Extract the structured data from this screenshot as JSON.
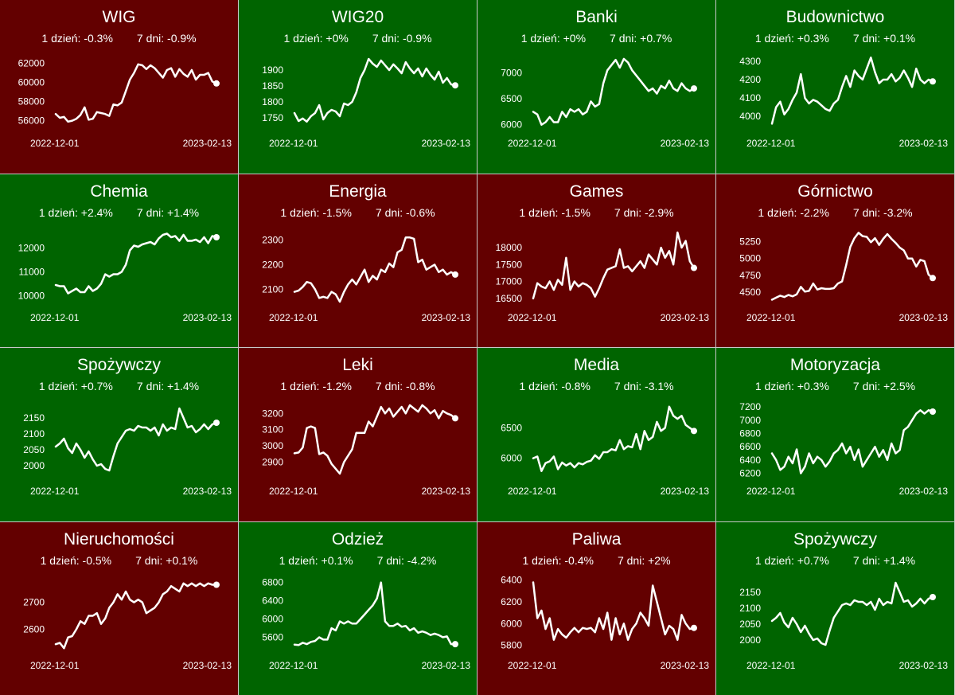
{
  "chart_data": [
    {
      "type": "line",
      "title": "WIG",
      "trend": "down",
      "stats": {
        "day": "1 dzień: -0.3%",
        "week": "7 dni: -0.9%"
      },
      "x_labels": [
        "2022-12-01",
        "2023-02-13"
      ],
      "yticks": [
        56000,
        58000,
        60000,
        62000
      ],
      "ylim": [
        55300,
        62800
      ],
      "values": [
        56700,
        56300,
        56400,
        55900,
        56000,
        56200,
        56600,
        57400,
        56100,
        56200,
        56900,
        56800,
        56700,
        56500,
        57700,
        57600,
        57900,
        59100,
        60300,
        61000,
        61900,
        61800,
        61400,
        61800,
        61500,
        61000,
        60500,
        61300,
        61500,
        60600,
        61400,
        60900,
        60600,
        61300,
        60300,
        60800,
        60800,
        61000,
        60100,
        59900
      ]
    },
    {
      "type": "line",
      "title": "WIG20",
      "trend": "up",
      "stats": {
        "day": "1 dzień: +0%",
        "week": "7 dni: -0.9%"
      },
      "x_labels": [
        "2022-12-01",
        "2023-02-13"
      ],
      "yticks": [
        1750,
        1800,
        1850,
        1900
      ],
      "ylim": [
        1720,
        1945
      ],
      "values": [
        1765,
        1740,
        1748,
        1738,
        1755,
        1765,
        1790,
        1745,
        1765,
        1775,
        1770,
        1755,
        1795,
        1790,
        1800,
        1830,
        1875,
        1900,
        1935,
        1920,
        1910,
        1930,
        1915,
        1900,
        1918,
        1905,
        1890,
        1925,
        1905,
        1890,
        1905,
        1880,
        1905,
        1885,
        1870,
        1895,
        1860,
        1875,
        1855,
        1852
      ]
    },
    {
      "type": "line",
      "title": "Banki",
      "trend": "up",
      "stats": {
        "day": "1 dzień: +0%",
        "week": "7 dni: +0.7%"
      },
      "x_labels": [
        "2022-12-01",
        "2023-02-13"
      ],
      "yticks": [
        6000,
        6500,
        7000
      ],
      "ylim": [
        5950,
        7330
      ],
      "values": [
        6250,
        6200,
        6000,
        6050,
        6150,
        6050,
        6050,
        6250,
        6150,
        6300,
        6250,
        6300,
        6200,
        6250,
        6450,
        6350,
        6400,
        6800,
        7050,
        7150,
        7250,
        7100,
        7270,
        7200,
        7050,
        6950,
        6850,
        6750,
        6650,
        6700,
        6600,
        6750,
        6700,
        6850,
        6700,
        6650,
        6800,
        6700,
        6650,
        6700
      ]
    },
    {
      "type": "line",
      "title": "Budownictwo",
      "trend": "up",
      "stats": {
        "day": "1 dzień: +0.3%",
        "week": "7 dni: +0.1%"
      },
      "x_labels": [
        "2022-12-01",
        "2023-02-13"
      ],
      "yticks": [
        4000,
        4100,
        4200,
        4300
      ],
      "ylim": [
        3940,
        4330
      ],
      "values": [
        3960,
        4050,
        4080,
        4010,
        4040,
        4090,
        4130,
        4230,
        4100,
        4070,
        4090,
        4080,
        4060,
        4040,
        4030,
        4070,
        4090,
        4160,
        4220,
        4160,
        4250,
        4220,
        4200,
        4260,
        4320,
        4240,
        4180,
        4200,
        4200,
        4230,
        4190,
        4210,
        4250,
        4210,
        4160,
        4260,
        4200,
        4180,
        4200,
        4190
      ]
    },
    {
      "type": "line",
      "title": "Chemia",
      "trend": "up",
      "stats": {
        "day": "1 dzień: +2.4%",
        "week": "7 dni: +1.4%"
      },
      "x_labels": [
        "2022-12-01",
        "2023-02-13"
      ],
      "yticks": [
        10000,
        11000,
        12000
      ],
      "ylim": [
        9750,
        12750
      ],
      "values": [
        10450,
        10400,
        10400,
        10100,
        10200,
        10300,
        10150,
        10150,
        10400,
        10200,
        10300,
        10500,
        10900,
        10800,
        10900,
        10900,
        11000,
        11300,
        11900,
        12100,
        12050,
        12150,
        12200,
        12250,
        12150,
        12400,
        12550,
        12600,
        12450,
        12500,
        12300,
        12550,
        12300,
        12300,
        12350,
        12250,
        12450,
        12200,
        12500,
        12450
      ]
    },
    {
      "type": "line",
      "title": "Energia",
      "trend": "down",
      "stats": {
        "day": "1 dzień: -1.5%",
        "week": "7 dni: -0.6%"
      },
      "x_labels": [
        "2022-12-01",
        "2023-02-13"
      ],
      "yticks": [
        2100,
        2200,
        2300
      ],
      "ylim": [
        2050,
        2340
      ],
      "values": [
        2090,
        2095,
        2110,
        2130,
        2125,
        2100,
        2065,
        2070,
        2065,
        2090,
        2080,
        2050,
        2090,
        2120,
        2140,
        2120,
        2150,
        2180,
        2130,
        2155,
        2140,
        2180,
        2170,
        2205,
        2190,
        2250,
        2260,
        2310,
        2310,
        2305,
        2210,
        2220,
        2180,
        2190,
        2200,
        2170,
        2180,
        2160,
        2170,
        2160
      ]
    },
    {
      "type": "line",
      "title": "Games",
      "trend": "down",
      "stats": {
        "day": "1 dzień: -1.5%",
        "week": "7 dni: -2.9%"
      },
      "x_labels": [
        "2022-12-01",
        "2023-02-13"
      ],
      "yticks": [
        16500,
        17000,
        17500,
        18000
      ],
      "ylim": [
        16400,
        18520
      ],
      "values": [
        16500,
        16950,
        16850,
        16800,
        17000,
        16750,
        17050,
        16900,
        17700,
        16750,
        17000,
        16850,
        16950,
        16900,
        16800,
        16550,
        16800,
        17100,
        17350,
        17400,
        17450,
        17950,
        17400,
        17450,
        17300,
        17450,
        17600,
        17400,
        17800,
        17650,
        17500,
        18000,
        17700,
        17900,
        17500,
        18450,
        18000,
        18200,
        17600,
        17400
      ]
    },
    {
      "type": "line",
      "title": "Górnictwo",
      "trend": "down",
      "stats": {
        "day": "1 dzień: -2.2%",
        "week": "7 dni: -3.2%"
      },
      "x_labels": [
        "2022-12-01",
        "2023-02-13"
      ],
      "yticks": [
        4500,
        4750,
        5000,
        5250
      ],
      "ylim": [
        4360,
        5420
      ],
      "values": [
        4390,
        4420,
        4450,
        4430,
        4460,
        4440,
        4470,
        4580,
        4510,
        4520,
        4630,
        4540,
        4560,
        4550,
        4550,
        4560,
        4630,
        4660,
        4900,
        5170,
        5300,
        5380,
        5330,
        5320,
        5240,
        5300,
        5200,
        5290,
        5360,
        5290,
        5230,
        5160,
        5120,
        5000,
        5000,
        4880,
        4980,
        4960,
        4760,
        4710
      ]
    },
    {
      "type": "line",
      "title": "Spożywczy",
      "trend": "up",
      "stats": {
        "day": "1 dzień: +0.7%",
        "week": "7 dni: +1.4%"
      },
      "x_labels": [
        "2022-12-01",
        "2023-02-13"
      ],
      "yticks": [
        2000,
        2050,
        2100,
        2150
      ],
      "ylim": [
        1970,
        2195
      ],
      "values": [
        2060,
        2070,
        2085,
        2055,
        2040,
        2070,
        2050,
        2025,
        2045,
        2020,
        2000,
        2005,
        1990,
        1985,
        2030,
        2070,
        2090,
        2110,
        2115,
        2110,
        2125,
        2120,
        2120,
        2110,
        2120,
        2095,
        2130,
        2110,
        2120,
        2115,
        2180,
        2150,
        2120,
        2125,
        2105,
        2115,
        2130,
        2115,
        2130,
        2135
      ]
    },
    {
      "type": "line",
      "title": "Leki",
      "trend": "down",
      "stats": {
        "day": "1 dzień: -1.2%",
        "week": "7 dni: -0.8%"
      },
      "x_labels": [
        "2022-12-01",
        "2023-02-13"
      ],
      "yticks": [
        2900,
        3000,
        3100,
        3200
      ],
      "ylim": [
        2820,
        3260
      ],
      "values": [
        2955,
        2960,
        2990,
        3110,
        3120,
        3110,
        2950,
        2960,
        2940,
        2890,
        2860,
        2830,
        2900,
        2940,
        2980,
        3080,
        3080,
        3080,
        3150,
        3120,
        3180,
        3240,
        3200,
        3230,
        3180,
        3210,
        3240,
        3200,
        3250,
        3230,
        3210,
        3250,
        3230,
        3200,
        3220,
        3170,
        3215,
        3200,
        3190,
        3170
      ]
    },
    {
      "type": "line",
      "title": "Media",
      "trend": "up",
      "stats": {
        "day": "1 dzień: -0.8%",
        "week": "7 dni: -3.1%"
      },
      "x_labels": [
        "2022-12-01",
        "2023-02-13"
      ],
      "yticks": [
        6000,
        6500
      ],
      "ylim": [
        5720,
        6900
      ],
      "values": [
        6000,
        6030,
        5790,
        5920,
        5950,
        6030,
        5820,
        5930,
        5880,
        5920,
        5850,
        5920,
        5900,
        5940,
        5960,
        6050,
        5990,
        6100,
        6100,
        6150,
        6130,
        6300,
        6150,
        6200,
        6180,
        6400,
        6150,
        6450,
        6300,
        6350,
        6600,
        6450,
        6500,
        6850,
        6700,
        6650,
        6700,
        6550,
        6500,
        6450
      ]
    },
    {
      "type": "line",
      "title": "Motoryzacja",
      "trend": "up",
      "stats": {
        "day": "1 dzień: +0.3%",
        "week": "7 dni: +2.5%"
      },
      "x_labels": [
        "2022-12-01",
        "2023-02-13"
      ],
      "yticks": [
        6200,
        6400,
        6600,
        6800,
        7000,
        7200
      ],
      "ylim": [
        6170,
        7250
      ],
      "values": [
        6500,
        6400,
        6250,
        6300,
        6450,
        6350,
        6560,
        6200,
        6300,
        6500,
        6350,
        6450,
        6400,
        6300,
        6380,
        6500,
        6550,
        6650,
        6500,
        6600,
        6400,
        6560,
        6300,
        6400,
        6500,
        6600,
        6450,
        6550,
        6400,
        6650,
        6500,
        6550,
        6850,
        6900,
        7000,
        7100,
        7150,
        7100,
        7150,
        7130
      ]
    },
    {
      "type": "line",
      "title": "Nieruchomości",
      "trend": "down",
      "stats": {
        "day": "1 dzień: -0.5%",
        "week": "7 dni: +0.1%"
      },
      "x_labels": [
        "2022-12-01",
        "2023-02-13"
      ],
      "yticks": [
        2600,
        2700
      ],
      "ylim": [
        2525,
        2790
      ],
      "values": [
        2545,
        2550,
        2530,
        2570,
        2575,
        2600,
        2630,
        2620,
        2650,
        2650,
        2660,
        2620,
        2640,
        2680,
        2700,
        2730,
        2710,
        2740,
        2710,
        2700,
        2710,
        2700,
        2660,
        2670,
        2680,
        2700,
        2730,
        2740,
        2760,
        2750,
        2740,
        2770,
        2760,
        2770,
        2760,
        2770,
        2760,
        2770,
        2765,
        2765
      ]
    },
    {
      "type": "line",
      "title": "Odzież",
      "trend": "up",
      "stats": {
        "day": "1 dzień: +0.1%",
        "week": "7 dni: -4.2%"
      },
      "x_labels": [
        "2022-12-01",
        "2023-02-13"
      ],
      "yticks": [
        5600,
        6000,
        6400,
        6800
      ],
      "ylim": [
        5330,
        6900
      ],
      "values": [
        5440,
        5430,
        5480,
        5450,
        5500,
        5520,
        5600,
        5550,
        5550,
        5800,
        5750,
        5950,
        5900,
        5950,
        5900,
        5900,
        6000,
        6100,
        6200,
        6300,
        6450,
        6800,
        5950,
        5850,
        5850,
        5900,
        5830,
        5850,
        5750,
        5800,
        5700,
        5730,
        5700,
        5650,
        5680,
        5650,
        5600,
        5620,
        5450,
        5450
      ]
    },
    {
      "type": "line",
      "title": "Paliwa",
      "trend": "down",
      "stats": {
        "day": "1 dzień: -0.4%",
        "week": "7 dni: +2%"
      },
      "x_labels": [
        "2022-12-01",
        "2023-02-13"
      ],
      "yticks": [
        5800,
        6000,
        6200,
        6400
      ],
      "ylim": [
        5760,
        6420
      ],
      "values": [
        6380,
        6050,
        6120,
        5950,
        6050,
        5850,
        5950,
        5900,
        5870,
        5920,
        5960,
        5920,
        5960,
        5950,
        5960,
        5920,
        6050,
        5950,
        6100,
        5850,
        6050,
        5900,
        6000,
        5850,
        5950,
        6000,
        6100,
        6050,
        5980,
        6350,
        6200,
        6050,
        5900,
        5980,
        5950,
        5850,
        6080,
        6000,
        5950,
        5960
      ]
    },
    {
      "type": "line",
      "title": "Spożywczy",
      "trend": "up",
      "stats": {
        "day": "1 dzień: +0.7%",
        "week": "7 dni: +1.4%"
      },
      "x_labels": [
        "2022-12-01",
        "2023-02-13"
      ],
      "yticks": [
        2000,
        2050,
        2100,
        2150
      ],
      "ylim": [
        1970,
        2195
      ],
      "values": [
        2060,
        2070,
        2085,
        2055,
        2040,
        2070,
        2050,
        2025,
        2045,
        2020,
        2000,
        2005,
        1990,
        1985,
        2030,
        2070,
        2090,
        2110,
        2115,
        2110,
        2125,
        2120,
        2120,
        2110,
        2120,
        2095,
        2130,
        2110,
        2120,
        2115,
        2180,
        2150,
        2120,
        2125,
        2105,
        2115,
        2130,
        2115,
        2130,
        2135
      ]
    }
  ]
}
